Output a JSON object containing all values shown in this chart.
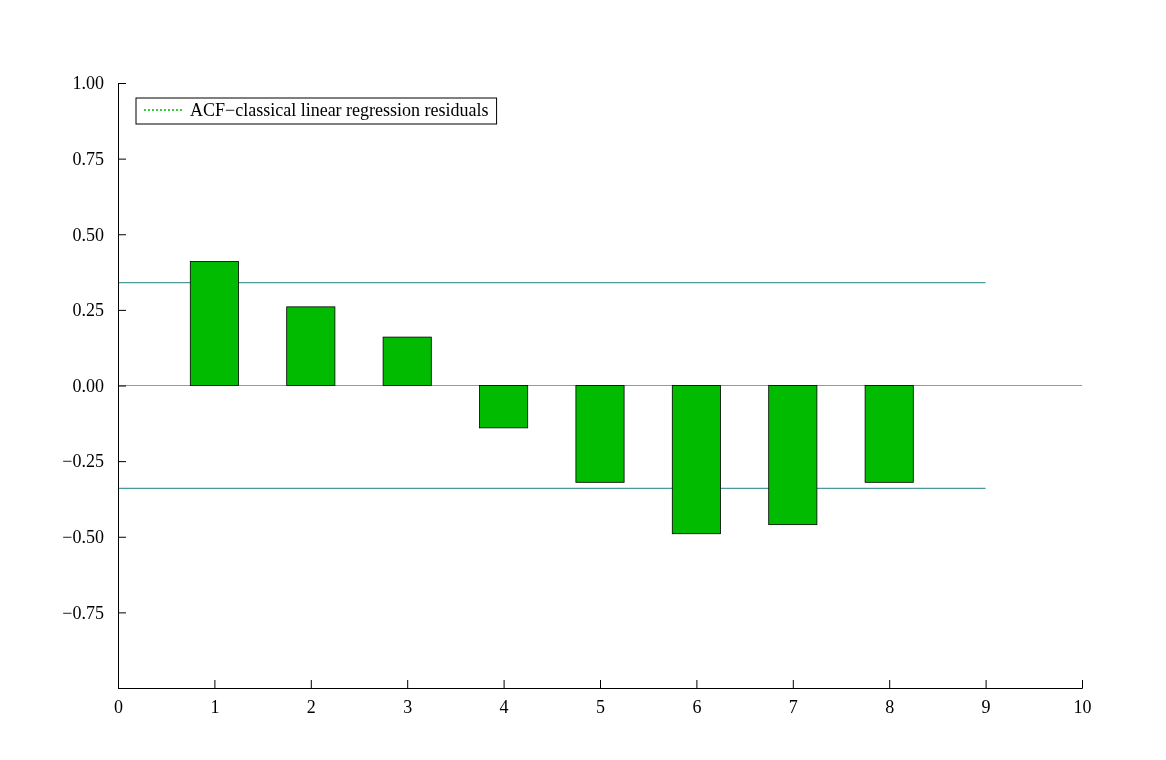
{
  "chart_data": {
    "type": "bar",
    "x": [
      1,
      2,
      3,
      4,
      5,
      6,
      7,
      8
    ],
    "series": [
      {
        "name": "ACF−classical linear regression residuals",
        "color": "#00bb00",
        "values": [
          0.41,
          0.26,
          0.16,
          -0.14,
          -0.32,
          -0.49,
          -0.46,
          -0.32
        ]
      }
    ],
    "xlim": [
      0,
      10
    ],
    "xticks": [
      0,
      1,
      2,
      3,
      4,
      5,
      6,
      7,
      8,
      9,
      10
    ],
    "ylim": [
      -1,
      1
    ],
    "yticks": [
      {
        "value": -1,
        "label": null
      },
      {
        "value": -0.75,
        "label": "−0.75"
      },
      {
        "value": -0.5,
        "label": "−0.50"
      },
      {
        "value": -0.25,
        "label": "−0.25"
      },
      {
        "value": 0,
        "label": "0.00"
      },
      {
        "value": 0.25,
        "label": "0.25"
      },
      {
        "value": 0.5,
        "label": "0.50"
      },
      {
        "value": 0.75,
        "label": "0.75"
      },
      {
        "value": 1,
        "label": "1.00"
      }
    ],
    "ref_lines": [
      {
        "axis": "y",
        "value": 0.34,
        "color": "#4a9a9a"
      },
      {
        "axis": "y",
        "value": -0.34,
        "color": "#4a9a9a"
      }
    ],
    "legend": "top left"
  }
}
